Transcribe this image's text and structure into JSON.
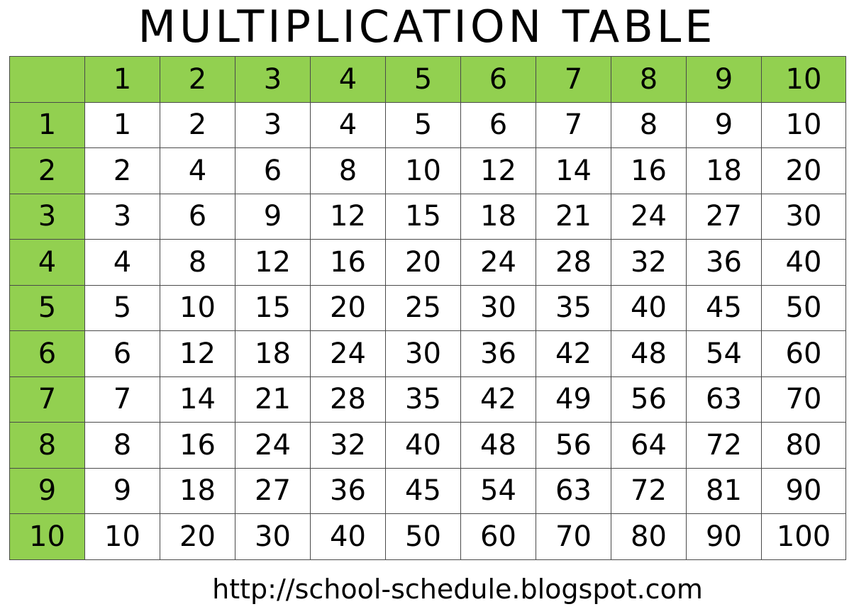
{
  "title": "MULTIPLICATION TABLE",
  "colors": {
    "header_fill": "#92d050",
    "cell_fill": "#ffffff",
    "border": "#4a4a4a"
  },
  "table": {
    "corner": "",
    "column_headers": [
      "1",
      "2",
      "3",
      "4",
      "5",
      "6",
      "7",
      "8",
      "9",
      "10"
    ],
    "rows": [
      {
        "header": "1",
        "cells": [
          "1",
          "2",
          "3",
          "4",
          "5",
          "6",
          "7",
          "8",
          "9",
          "10"
        ]
      },
      {
        "header": "2",
        "cells": [
          "2",
          "4",
          "6",
          "8",
          "10",
          "12",
          "14",
          "16",
          "18",
          "20"
        ]
      },
      {
        "header": "3",
        "cells": [
          "3",
          "6",
          "9",
          "12",
          "15",
          "18",
          "21",
          "24",
          "27",
          "30"
        ]
      },
      {
        "header": "4",
        "cells": [
          "4",
          "8",
          "12",
          "16",
          "20",
          "24",
          "28",
          "32",
          "36",
          "40"
        ]
      },
      {
        "header": "5",
        "cells": [
          "5",
          "10",
          "15",
          "20",
          "25",
          "30",
          "35",
          "40",
          "45",
          "50"
        ]
      },
      {
        "header": "6",
        "cells": [
          "6",
          "12",
          "18",
          "24",
          "30",
          "36",
          "42",
          "48",
          "54",
          "60"
        ]
      },
      {
        "header": "7",
        "cells": [
          "7",
          "14",
          "21",
          "28",
          "35",
          "42",
          "49",
          "56",
          "63",
          "70"
        ]
      },
      {
        "header": "8",
        "cells": [
          "8",
          "16",
          "24",
          "32",
          "40",
          "48",
          "56",
          "64",
          "72",
          "80"
        ]
      },
      {
        "header": "9",
        "cells": [
          "9",
          "18",
          "27",
          "36",
          "45",
          "54",
          "63",
          "72",
          "81",
          "90"
        ]
      },
      {
        "header": "10",
        "cells": [
          "10",
          "20",
          "30",
          "40",
          "50",
          "60",
          "70",
          "80",
          "90",
          "100"
        ]
      }
    ]
  },
  "footer_url": "http://school-schedule.blogspot.com"
}
